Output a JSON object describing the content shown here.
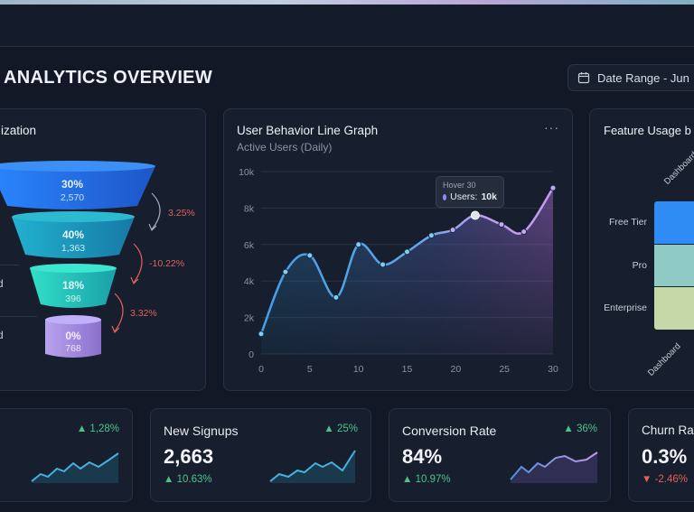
{
  "header": {
    "title": "ANALYTICS OVERVIEW",
    "date_range_label": "Date Range - Jun",
    "calendar_icon": "calendar-icon"
  },
  "funnel_card": {
    "title": "ization",
    "stages": [
      {
        "percent": "30%",
        "count": "2,570",
        "color": "#2f7bf0"
      },
      {
        "percent": "40%",
        "count": "1,363",
        "color": "#1fa3c0"
      },
      {
        "percent": "18%",
        "count": "396",
        "color": "#2cd3c0"
      },
      {
        "percent": "0%",
        "count": "768",
        "color": "#a48fe0"
      }
    ],
    "transitions": [
      "3.25%",
      "-10.22%",
      "3.32%"
    ],
    "side_labels": [
      "d",
      "d"
    ]
  },
  "line_card": {
    "title": "User Behavior Line Graph",
    "subtitle": "Active Users (Daily)",
    "menu_icon": "more-horizontal-icon",
    "tooltip": {
      "title": "Hover 30",
      "label": "Users:",
      "value": "10k"
    }
  },
  "chart_data": {
    "type": "area",
    "title": "User Behavior Line Graph",
    "subtitle": "Active Users (Daily)",
    "x": [
      0,
      2.5,
      5,
      7.7,
      10,
      12.5,
      15,
      17.5,
      19.7,
      22,
      24.7,
      27,
      30
    ],
    "series": [
      {
        "name": "Users",
        "values": [
          1100,
          4500,
          5400,
          3100,
          6000,
          4900,
          5600,
          6500,
          6800,
          7600,
          7100,
          6700,
          9100
        ]
      }
    ],
    "xlim": [
      0,
      30
    ],
    "ylim": [
      0,
      10000
    ],
    "xticks": [
      "0",
      "5",
      "10",
      "15",
      "20",
      "25",
      "30"
    ],
    "yticks": [
      "0",
      "2k",
      "4k",
      "6k",
      "8k",
      "10k"
    ],
    "grid": true,
    "highlight_index": 9
  },
  "feature_card": {
    "title": "Feature Usage b",
    "rows": [
      {
        "label": "Free Tier",
        "color": "#2f8cf5"
      },
      {
        "label": "Pro",
        "color": "#8fcbc4"
      },
      {
        "label": "Enterprise",
        "color": "#c7d8a8"
      }
    ],
    "col_label_top": "Dashboard",
    "col_label_bottom": "Dashboard"
  },
  "kpis": [
    {
      "label": "",
      "value": "",
      "delta": "1,28%",
      "delta_dir": "up",
      "sub": ""
    },
    {
      "label": "New Signups",
      "value": "2,663",
      "delta": "25%",
      "delta_dir": "up",
      "sub": "10.63%",
      "sub_dir": "up"
    },
    {
      "label": "Conversion Rate",
      "value": "84%",
      "delta": "36%",
      "delta_dir": "up",
      "sub": "10.97%",
      "sub_dir": "up"
    },
    {
      "label": "Churn Ra",
      "value": "0.3%",
      "delta": "",
      "sub": "-2.46%",
      "sub_dir": "down"
    }
  ],
  "colors": {
    "bg": "#121826",
    "card": "#171e2d",
    "up": "#4cc38a",
    "down": "#e2615f",
    "accent": "#3fa0e6",
    "purple": "#b08be0"
  }
}
